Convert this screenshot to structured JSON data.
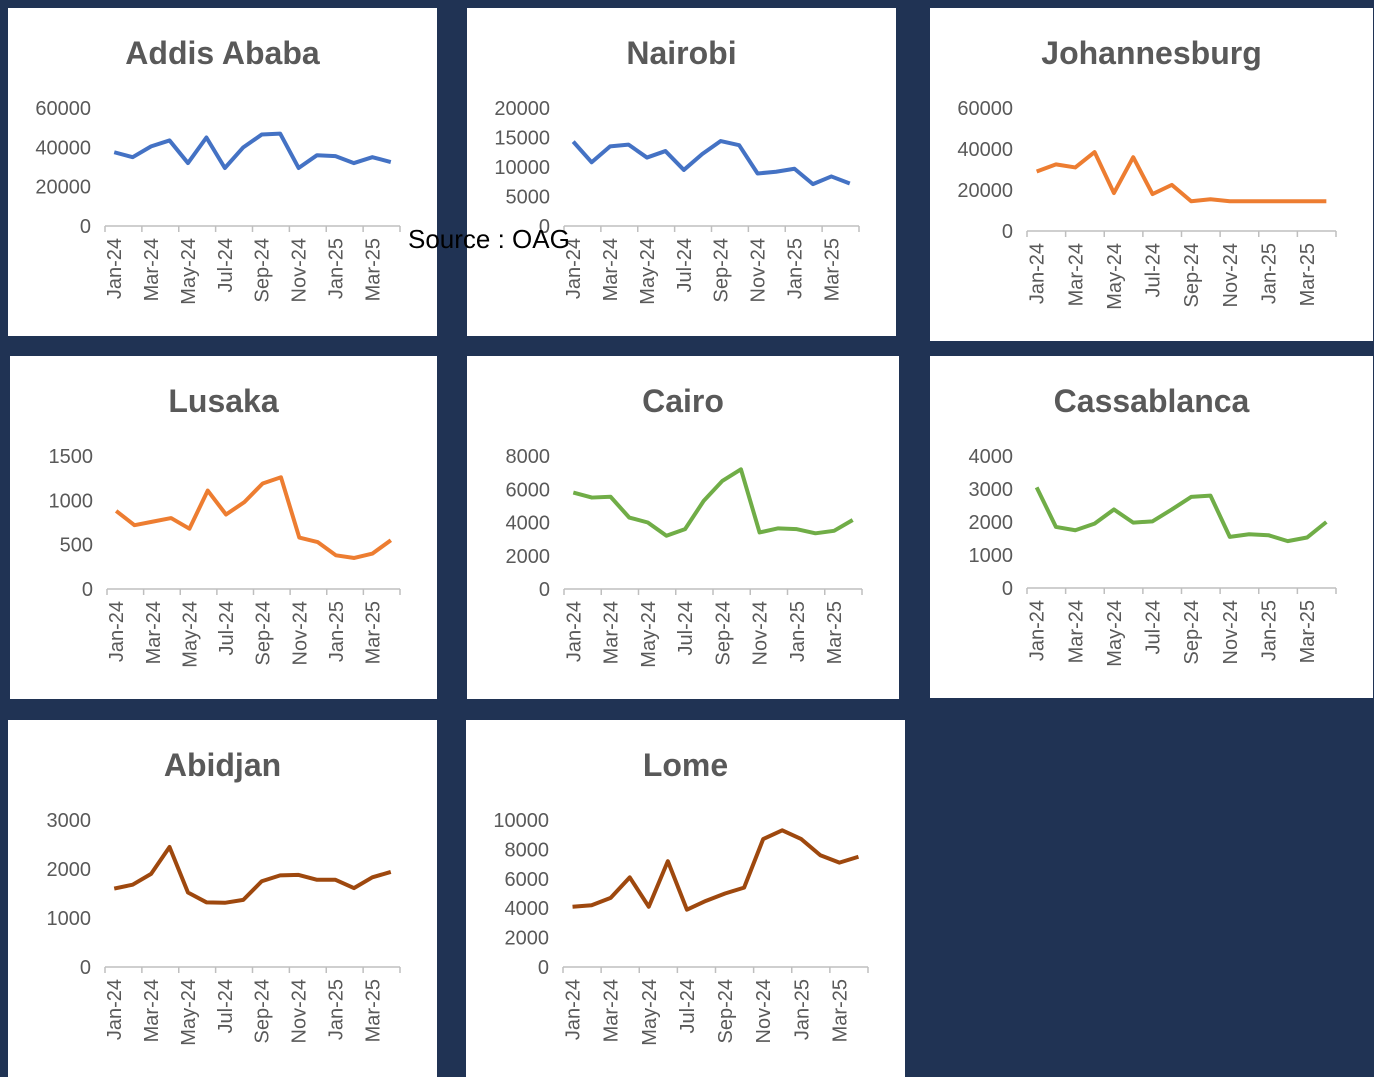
{
  "chart_data": [
    {
      "type": "line",
      "title": "Addis Ababa",
      "color": "#4472c4",
      "categories": [
        "Jan-24",
        null,
        "Mar-24",
        null,
        "May-24",
        null,
        "Jul-24",
        null,
        "Sep-24",
        null,
        "Nov-24",
        null,
        "Jan-25",
        null,
        "Mar-25",
        null
      ],
      "values": [
        37500,
        35000,
        40500,
        43500,
        32000,
        45000,
        29500,
        40000,
        46500,
        47000,
        29500,
        36000,
        35500,
        32000,
        35000,
        32500
      ],
      "ylim": [
        0,
        60000
      ],
      "yticks": [
        0,
        20000,
        40000,
        60000
      ]
    },
    {
      "type": "line",
      "title": "Nairobi",
      "color": "#4472c4",
      "categories": [
        "Jan-24",
        null,
        "Mar-24",
        null,
        "May-24",
        null,
        "Jul-24",
        null,
        "Sep-24",
        null,
        "Nov-24",
        null,
        "Jan-25",
        null,
        "Mar-25",
        null
      ],
      "values": [
        14300,
        10800,
        13500,
        13800,
        11600,
        12700,
        9500,
        12200,
        14400,
        13700,
        8900,
        9200,
        9700,
        7100,
        8400,
        7200
      ],
      "ylim": [
        0,
        20000
      ],
      "yticks": [
        0,
        5000,
        10000,
        15000,
        20000
      ]
    },
    {
      "type": "line",
      "title": "Johannesburg",
      "color": "#ed7d31",
      "categories": [
        "Jan-24",
        null,
        "Mar-24",
        null,
        "May-24",
        null,
        "Jul-24",
        null,
        "Sep-24",
        null,
        "Nov-24",
        null,
        "Jan-25",
        null,
        "Mar-25",
        null
      ],
      "values": [
        29000,
        32500,
        31000,
        38500,
        18500,
        36000,
        18000,
        22500,
        14500,
        15500,
        14500,
        14500,
        14500,
        14500,
        14500,
        14500
      ],
      "ylim": [
        0,
        60000
      ],
      "yticks": [
        0,
        20000,
        40000,
        60000
      ]
    },
    {
      "type": "line",
      "title": "Lusaka",
      "color": "#ed7d31",
      "categories": [
        "Jan-24",
        null,
        "Mar-24",
        null,
        "May-24",
        null,
        "Jul-24",
        null,
        "Sep-24",
        null,
        "Nov-24",
        null,
        "Jan-25",
        null,
        "Mar-25",
        null
      ],
      "values": [
        880,
        720,
        760,
        800,
        680,
        1110,
        840,
        980,
        1190,
        1260,
        580,
        530,
        380,
        350,
        400,
        550
      ],
      "ylim": [
        0,
        1500
      ],
      "yticks": [
        0,
        500,
        1000,
        1500
      ]
    },
    {
      "type": "line",
      "title": "Cairo",
      "color": "#70ad47",
      "categories": [
        "Jan-24",
        null,
        "Mar-24",
        null,
        "May-24",
        null,
        "Jul-24",
        null,
        "Sep-24",
        null,
        "Nov-24",
        null,
        "Jan-25",
        null,
        "Mar-25",
        null
      ],
      "values": [
        5800,
        5500,
        5550,
        4300,
        4000,
        3200,
        3600,
        5300,
        6500,
        7200,
        3400,
        3650,
        3600,
        3350,
        3500,
        4150
      ],
      "ylim": [
        0,
        8000
      ],
      "yticks": [
        0,
        2000,
        4000,
        6000,
        8000
      ]
    },
    {
      "type": "line",
      "title": "Cassablanca",
      "color": "#70ad47",
      "categories": [
        "Jan-24",
        null,
        "Mar-24",
        null,
        "May-24",
        null,
        "Jul-24",
        null,
        "Sep-24",
        null,
        "Nov-24",
        null,
        "Jan-25",
        null,
        "Mar-25",
        null
      ],
      "values": [
        3050,
        1850,
        1750,
        1950,
        2380,
        1980,
        2020,
        2380,
        2760,
        2800,
        1550,
        1630,
        1600,
        1420,
        1530,
        2000
      ],
      "ylim": [
        0,
        4000
      ],
      "yticks": [
        0,
        1000,
        2000,
        3000,
        4000
      ]
    },
    {
      "type": "line",
      "title": "Abidjan",
      "color": "#9e480e",
      "categories": [
        "Jan-24",
        null,
        "Mar-24",
        null,
        "May-24",
        null,
        "Jul-24",
        null,
        "Sep-24",
        null,
        "Nov-24",
        null,
        "Jan-25",
        null,
        "Mar-25",
        null
      ],
      "values": [
        1600,
        1680,
        1900,
        2450,
        1520,
        1320,
        1310,
        1370,
        1750,
        1870,
        1880,
        1780,
        1780,
        1610,
        1830,
        1940
      ],
      "ylim": [
        0,
        3000
      ],
      "yticks": [
        0,
        1000,
        2000,
        3000
      ]
    },
    {
      "type": "line",
      "title": "Lome",
      "color": "#9e480e",
      "categories": [
        "Jan-24",
        null,
        "Mar-24",
        null,
        "May-24",
        null,
        "Jul-24",
        null,
        "Sep-24",
        null,
        "Nov-24",
        null,
        "Jan-25",
        null,
        "Mar-25",
        null
      ],
      "values": [
        4100,
        4200,
        4700,
        6100,
        4100,
        7200,
        3900,
        4500,
        5000,
        5400,
        8700,
        9300,
        8700,
        7600,
        7100,
        7500
      ],
      "ylim": [
        0,
        10000
      ],
      "yticks": [
        0,
        2000,
        4000,
        6000,
        8000,
        10000
      ]
    }
  ],
  "source": "Source : OAG"
}
